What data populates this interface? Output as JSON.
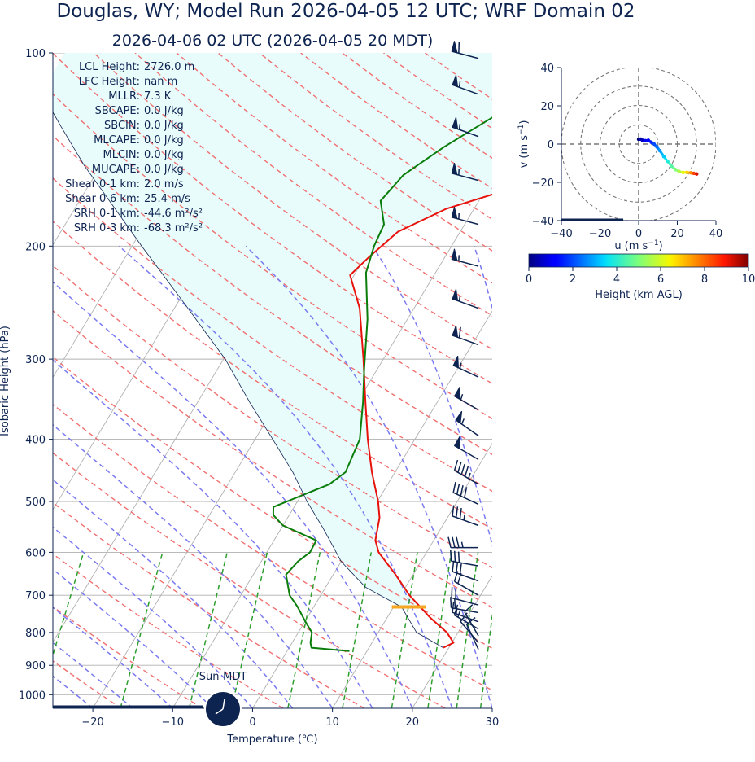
{
  "title": "Douglas, WY; Model Run 2026-04-05 12 UTC; WRF Domain 02",
  "subtitle": "2026-04-06 02 UTC  (2026-04-05 20 MDT)",
  "clock_label": "Sun-MDT",
  "colors": {
    "text": "#0d2350",
    "temperature": "#e8120c",
    "dewpoint": "#0a7d0a",
    "parcel": "#0d2350",
    "cape_fill": "#e8fcfc",
    "dry_adiabat": "#f07070",
    "moist_adiabat": "#7a7af0",
    "mixing_ratio": "#2e9e2e",
    "isotherm": "#b0b0b0",
    "isobar": "#b0b0b0",
    "lcl_marker": "#f5a623",
    "barb": "#0d2350"
  },
  "stats": [
    {
      "label": "LCL Height:",
      "value": "2726.0 m"
    },
    {
      "label": "LFC Height:",
      "value": "nan m"
    },
    {
      "label": "MLLR:",
      "value": "7.3 K"
    },
    {
      "label": "SBCAPE:",
      "value": "0.0 J/kg"
    },
    {
      "label": "SBCIN:",
      "value": "0.0 J/kg"
    },
    {
      "label": "MLCAPE:",
      "value": "0.0 J/kg"
    },
    {
      "label": "MLCIN:",
      "value": "0.0 J/kg"
    },
    {
      "label": "MUCAPE:",
      "value": "0.0 J/kg"
    },
    {
      "label": "Shear 0-1 km:",
      "value": "2.0 m/s"
    },
    {
      "label": "Shear 0-6 km:",
      "value": "25.4 m/s"
    },
    {
      "label": "SRH 0-1 km:",
      "value": "-44.6 m²/s²"
    },
    {
      "label": "SRH 0-3 km:",
      "value": "-68.3 m²/s²"
    }
  ],
  "chart_data": [
    {
      "type": "line",
      "subtype": "skew-T log-p",
      "xlabel": "Temperature (℃)",
      "ylabel": "Isobaric Height (hPa)",
      "xlim": [
        -25,
        30
      ],
      "ylim": [
        1050,
        100
      ],
      "y_scale": "log",
      "x_ticks": [
        "−20",
        "−10",
        "0",
        "10",
        "20",
        "30"
      ],
      "x_tick_values": [
        -20,
        -10,
        0,
        10,
        20,
        30
      ],
      "y_ticks": [
        "100",
        "200",
        "300",
        "400",
        "500",
        "600",
        "700",
        "800",
        "900",
        "1000"
      ],
      "y_tick_values": [
        100,
        200,
        300,
        400,
        500,
        600,
        700,
        800,
        900,
        1000
      ],
      "lcl": {
        "pressure": 730,
        "temperature": 11
      },
      "series": [
        {
          "key": "temperature",
          "points": [
            [
              845,
              19.3
            ],
            [
              830,
              20.2
            ],
            [
              800,
              18.6
            ],
            [
              760,
              15.5
            ],
            [
              700,
              11.1
            ],
            [
              650,
              7.8
            ],
            [
              600,
              4.0
            ],
            [
              575,
              2.7
            ],
            [
              530,
              1.5
            ],
            [
              500,
              0.1
            ],
            [
              450,
              -2.9
            ],
            [
              400,
              -5.9
            ],
            [
              350,
              -9.0
            ],
            [
              300,
              -12.5
            ],
            [
              250,
              -16.8
            ],
            [
              222,
              -20.5
            ],
            [
              208,
              -19.5
            ],
            [
              190,
              -17.8
            ],
            [
              175,
              -13.5
            ],
            [
              162,
              -6.5
            ],
            [
              145,
              1.0
            ],
            [
              125,
              7.0
            ],
            [
              112,
              9.8
            ],
            [
              100,
              12.4
            ]
          ]
        },
        {
          "key": "dewpoint",
          "points": [
            [
              855,
              7.8
            ],
            [
              845,
              2.8
            ],
            [
              830,
              2.3
            ],
            [
              800,
              1.7
            ],
            [
              770,
              0.1
            ],
            [
              730,
              -2.0
            ],
            [
              700,
              -3.9
            ],
            [
              650,
              -5.9
            ],
            [
              620,
              -5.4
            ],
            [
              600,
              -4.6
            ],
            [
              575,
              -4.7
            ],
            [
              545,
              -10.0
            ],
            [
              525,
              -12.0
            ],
            [
              510,
              -12.6
            ],
            [
              470,
              -7.3
            ],
            [
              450,
              -6.2
            ],
            [
              400,
              -6.9
            ],
            [
              350,
              -9.3
            ],
            [
              310,
              -11.7
            ],
            [
              260,
              -15.0
            ],
            [
              220,
              -18.7
            ],
            [
              200,
              -19.7
            ],
            [
              185,
              -20.1
            ],
            [
              170,
              -22.3
            ],
            [
              155,
              -21.4
            ],
            [
              140,
              -18.4
            ],
            [
              125,
              -14.3
            ],
            [
              100,
              -5.2
            ]
          ]
        },
        {
          "key": "parcel",
          "points": [
            [
              845,
              19.3
            ],
            [
              800,
              14.8
            ],
            [
              730,
              11.0
            ],
            [
              680,
              5.0
            ],
            [
              620,
              0.0
            ],
            [
              550,
              -4.8
            ],
            [
              500,
              -8.8
            ],
            [
              450,
              -12.8
            ],
            [
              400,
              -17.8
            ],
            [
              350,
              -23.5
            ],
            [
              300,
              -29.8
            ],
            [
              250,
              -38.3
            ],
            [
              200,
              -48.8
            ],
            [
              150,
              -62.0
            ],
            [
              130,
              -68.0
            ],
            [
              115,
              -73.0
            ]
          ]
        }
      ],
      "wind_barbs": [
        {
          "p": 850,
          "speed_kt": 10,
          "dir_deg": 335
        },
        {
          "p": 830,
          "speed_kt": 10,
          "dir_deg": 320
        },
        {
          "p": 810,
          "speed_kt": 10,
          "dir_deg": 330
        },
        {
          "p": 790,
          "speed_kt": 15,
          "dir_deg": 300
        },
        {
          "p": 770,
          "speed_kt": 15,
          "dir_deg": 290
        },
        {
          "p": 745,
          "speed_kt": 20,
          "dir_deg": 280
        },
        {
          "p": 725,
          "speed_kt": 20,
          "dir_deg": 285
        },
        {
          "p": 700,
          "speed_kt": 20,
          "dir_deg": 300
        },
        {
          "p": 665,
          "speed_kt": 30,
          "dir_deg": 290
        },
        {
          "p": 630,
          "speed_kt": 30,
          "dir_deg": 280
        },
        {
          "p": 590,
          "speed_kt": 35,
          "dir_deg": 270
        },
        {
          "p": 545,
          "speed_kt": 35,
          "dir_deg": 290
        },
        {
          "p": 505,
          "speed_kt": 40,
          "dir_deg": 295
        },
        {
          "p": 470,
          "speed_kt": 45,
          "dir_deg": 300
        },
        {
          "p": 430,
          "speed_kt": 50,
          "dir_deg": 300
        },
        {
          "p": 395,
          "speed_kt": 55,
          "dir_deg": 305
        },
        {
          "p": 360,
          "speed_kt": 55,
          "dir_deg": 300
        },
        {
          "p": 320,
          "speed_kt": 55,
          "dir_deg": 295
        },
        {
          "p": 285,
          "speed_kt": 60,
          "dir_deg": 290
        },
        {
          "p": 250,
          "speed_kt": 55,
          "dir_deg": 290
        },
        {
          "p": 215,
          "speed_kt": 55,
          "dir_deg": 285
        },
        {
          "p": 185,
          "speed_kt": 55,
          "dir_deg": 285
        },
        {
          "p": 158,
          "speed_kt": 55,
          "dir_deg": 285
        },
        {
          "p": 135,
          "speed_kt": 55,
          "dir_deg": 290
        },
        {
          "p": 116,
          "speed_kt": 55,
          "dir_deg": 290
        },
        {
          "p": 102,
          "speed_kt": 60,
          "dir_deg": 285
        }
      ]
    },
    {
      "type": "scatter",
      "subtype": "hodograph",
      "xlabel": "u (m s$^{-1}$)",
      "ylabel": "v (m s$^{-1}$)",
      "xlim": [
        -40,
        40
      ],
      "ylim": [
        -40,
        40
      ],
      "x_ticks": [
        "−40",
        "−20",
        "0",
        "20",
        "40"
      ],
      "x_tick_values": [
        -40,
        -20,
        0,
        20,
        40
      ],
      "y_ticks": [
        "40",
        "20",
        "0",
        "−20",
        "−40"
      ],
      "y_tick_values": [
        40,
        20,
        0,
        -20,
        -40
      ],
      "ring_speeds": [
        10,
        20,
        30,
        40
      ],
      "points": [
        [
          0.0,
          2.5,
          0.0
        ],
        [
          1.0,
          2.6,
          0.3
        ],
        [
          2.0,
          2.0,
          0.6
        ],
        [
          3.5,
          1.8,
          1.0
        ],
        [
          5.0,
          2.0,
          1.3
        ],
        [
          6.5,
          1.0,
          1.6
        ],
        [
          8.0,
          0.0,
          2.0
        ],
        [
          9.5,
          -1.5,
          2.4
        ],
        [
          11.0,
          -3.5,
          2.8
        ],
        [
          13.0,
          -6.5,
          3.3
        ],
        [
          15.0,
          -9.0,
          3.9
        ],
        [
          17.0,
          -11.5,
          4.5
        ],
        [
          19.0,
          -13.3,
          5.0
        ],
        [
          21.0,
          -14.4,
          5.6
        ],
        [
          23.0,
          -14.8,
          6.2
        ],
        [
          25.0,
          -14.8,
          6.8
        ],
        [
          27.0,
          -15.0,
          7.6
        ],
        [
          28.5,
          -15.3,
          8.4
        ],
        [
          30.0,
          -15.6,
          9.2
        ]
      ]
    },
    {
      "type": "heatmap",
      "subtype": "colorbar",
      "label": "Height (km AGL)",
      "range": [
        0,
        10
      ],
      "ticks": [
        "0",
        "2",
        "4",
        "6",
        "8",
        "10"
      ],
      "tick_values": [
        0,
        2,
        4,
        6,
        8,
        10
      ]
    }
  ]
}
